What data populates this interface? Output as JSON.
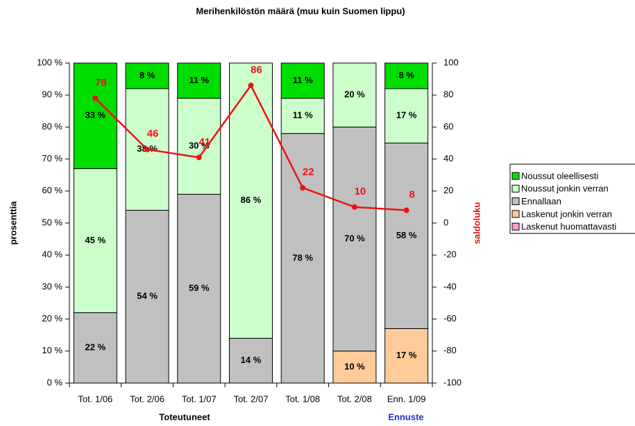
{
  "chart_data": {
    "type": "stacked-bar-line",
    "title": "Merihenkilöstön määrä (muu kuin Suomen lippu)",
    "ylabel": "prosenttia",
    "y2label": "saldoluku",
    "group_labels": [
      "Toteutuneet",
      "Ennuste"
    ],
    "categories": [
      "Tot. 1/06",
      "Tot. 2/06",
      "Tot. 1/07",
      "Tot. 2/07",
      "Tot. 1/08",
      "Tot. 2/08",
      "Enn. 1/09"
    ],
    "ylim": [
      0,
      100
    ],
    "yticks": [
      {
        "value": 0,
        "label": "0 %"
      },
      {
        "value": 10,
        "label": "10 %"
      },
      {
        "value": 20,
        "label": "20 %"
      },
      {
        "value": 30,
        "label": "30 %"
      },
      {
        "value": 40,
        "label": "40 %"
      },
      {
        "value": 50,
        "label": "50 %"
      },
      {
        "value": 60,
        "label": "60 %"
      },
      {
        "value": 70,
        "label": "70 %"
      },
      {
        "value": 80,
        "label": "80 %"
      },
      {
        "value": 90,
        "label": "90 %"
      },
      {
        "value": 100,
        "label": "100 %"
      }
    ],
    "y2lim": [
      -100,
      100
    ],
    "y2ticks": [
      -100,
      -80,
      -60,
      -40,
      -20,
      0,
      20,
      40,
      60,
      80,
      100
    ],
    "grid": false,
    "series": [
      {
        "name": "Laskenut huomattavasti",
        "color": "#ff99cc",
        "values": [
          0,
          0,
          0,
          0,
          0,
          0,
          0
        ],
        "value_labels": [
          null,
          null,
          null,
          null,
          null,
          null,
          null
        ]
      },
      {
        "name": "Laskenut jonkin verran",
        "color": "#ffcc99",
        "values": [
          0,
          0,
          0,
          0,
          0,
          10,
          17
        ],
        "value_labels": [
          null,
          null,
          null,
          null,
          null,
          "10 %",
          "17 %"
        ]
      },
      {
        "name": "Ennallaan",
        "color": "#c0c0c0",
        "values": [
          22,
          54,
          59,
          14,
          78,
          70,
          58
        ],
        "value_labels": [
          "22 %",
          "54 %",
          "59 %",
          "14 %",
          "78 %",
          "70 %",
          "58 %"
        ]
      },
      {
        "name": "Noussut jonkin verran",
        "color": "#ccffcc",
        "values": [
          45,
          38,
          30,
          86,
          11,
          20,
          17
        ],
        "value_labels": [
          "45 %",
          "38 %",
          "30 %",
          "86 %",
          "11 %",
          "20 %",
          "17 %"
        ]
      },
      {
        "name": "Noussut oleellisesti",
        "color": "#00dd00",
        "values": [
          33,
          8,
          11,
          0,
          11,
          0,
          8
        ],
        "value_labels": [
          "33 %",
          "8 %",
          "11 %",
          null,
          "11 %",
          null,
          "8 %"
        ]
      }
    ],
    "line": {
      "name": "saldoluku",
      "color": "#ee1111",
      "axis": "y2",
      "values": [
        78,
        46,
        41,
        86,
        22,
        10,
        8
      ]
    }
  }
}
